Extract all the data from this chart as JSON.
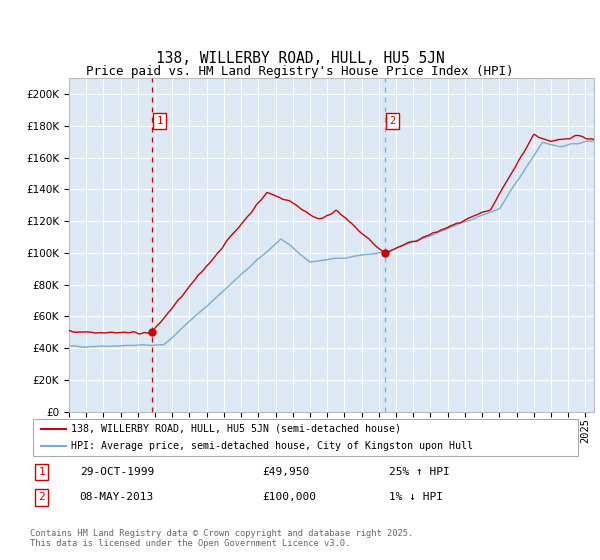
{
  "title": "138, WILLERBY ROAD, HULL, HU5 5JN",
  "subtitle": "Price paid vs. HM Land Registry's House Price Index (HPI)",
  "ylim": [
    0,
    210000
  ],
  "yticks": [
    0,
    20000,
    40000,
    60000,
    80000,
    100000,
    120000,
    140000,
    160000,
    180000,
    200000
  ],
  "xlim_start": 1995.0,
  "xlim_end": 2025.5,
  "plot_bg_color": "#dce9f5",
  "fig_bg_color": "#ffffff",
  "grid_color": "#ffffff",
  "sale1_x": 1999.83,
  "sale1_y": 49950,
  "sale2_x": 2013.36,
  "sale2_y": 100000,
  "vline1_x": 1999.83,
  "vline2_x": 2013.36,
  "legend_label1": "138, WILLERBY ROAD, HULL, HU5 5JN (semi-detached house)",
  "legend_label2": "HPI: Average price, semi-detached house, City of Kingston upon Hull",
  "table_row1": [
    "1",
    "29-OCT-1999",
    "£49,950",
    "25% ↑ HPI"
  ],
  "table_row2": [
    "2",
    "08-MAY-2013",
    "£100,000",
    "1% ↓ HPI"
  ],
  "footer": "Contains HM Land Registry data © Crown copyright and database right 2025.\nThis data is licensed under the Open Government Licence v3.0.",
  "red_color": "#cc0000",
  "blue_color": "#7aadcf",
  "vline2_color": "#7aadcf",
  "title_fontsize": 10.5,
  "subtitle_fontsize": 9,
  "tick_fontsize": 7.5
}
